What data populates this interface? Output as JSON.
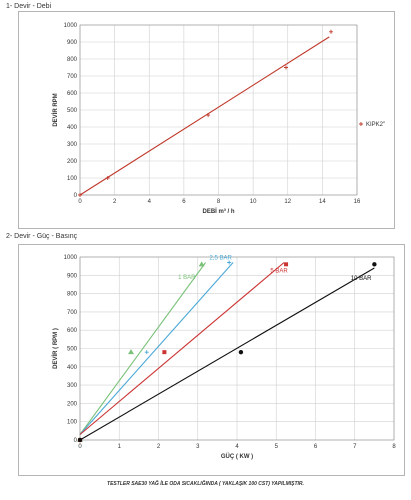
{
  "sections": {
    "title1": "1- Devir - Debi",
    "title2": "2- Devir - Güç - Basınç"
  },
  "footnote": "TESTLER SAE30 YAĞ İLE ODA SICAKLIĞINDA ( YAKLAŞIK 100 CST) YAPILMIŞTIR.",
  "chart_data": [
    {
      "type": "line",
      "title": "",
      "xlabel": "DEBİ m³ / h",
      "ylabel": "DEVİR RPM",
      "xlim": [
        0,
        16
      ],
      "ylim": [
        0,
        1000
      ],
      "xticks": [
        0,
        2,
        4,
        6,
        8,
        10,
        12,
        14,
        16
      ],
      "yticks": [
        0,
        100,
        200,
        300,
        400,
        500,
        600,
        700,
        800,
        900,
        1000
      ],
      "grid": true,
      "legend": "right",
      "series": [
        {
          "name": "KIPK2\"",
          "color": "#c0392b",
          "points": [
            [
              0,
              0
            ],
            [
              1.6,
              100
            ],
            [
              7.4,
              470
            ],
            [
              11.9,
              750
            ],
            [
              14.5,
              960
            ]
          ],
          "line": [
            [
              0,
              0
            ],
            [
              14.4,
              930
            ]
          ]
        }
      ]
    },
    {
      "type": "line",
      "title": "",
      "xlabel": "GÜÇ ( KW )",
      "ylabel": "DEVİR ( RPM )",
      "xlim": [
        0,
        8
      ],
      "ylim": [
        0,
        1000
      ],
      "xticks": [
        0,
        1,
        2,
        3,
        4,
        5,
        6,
        7,
        8
      ],
      "yticks": [
        0,
        100,
        200,
        300,
        400,
        500,
        600,
        700,
        800,
        900,
        1000
      ],
      "grid": true,
      "series": [
        {
          "name": "1 BAR",
          "color": "#7ac27a",
          "marker": "triangle",
          "points": [
            [
              0,
              0
            ],
            [
              1.3,
              480
            ],
            [
              3.1,
              960
            ]
          ],
          "line": [
            [
              0,
              30
            ],
            [
              3.2,
              970
            ]
          ]
        },
        {
          "name": "2,5 BAR",
          "color": "#4aa8d8",
          "marker": "plus",
          "points": [
            [
              0,
              0
            ],
            [
              1.7,
              480
            ],
            [
              3.8,
              970
            ]
          ],
          "line": [
            [
              0,
              30
            ],
            [
              3.9,
              970
            ]
          ]
        },
        {
          "name": "5 BAR",
          "color": "#cc3333",
          "marker": "square",
          "points": [
            [
              0,
              0
            ],
            [
              2.15,
              480
            ],
            [
              5.25,
              960
            ]
          ],
          "line": [
            [
              0,
              30
            ],
            [
              5.2,
              970
            ]
          ]
        },
        {
          "name": "10 BAR",
          "color": "#111111",
          "marker": "circle",
          "points": [
            [
              0,
              0
            ],
            [
              4.1,
              480
            ],
            [
              7.5,
              960
            ]
          ],
          "line": [
            [
              0,
              0
            ],
            [
              7.5,
              940
            ]
          ]
        }
      ]
    }
  ]
}
